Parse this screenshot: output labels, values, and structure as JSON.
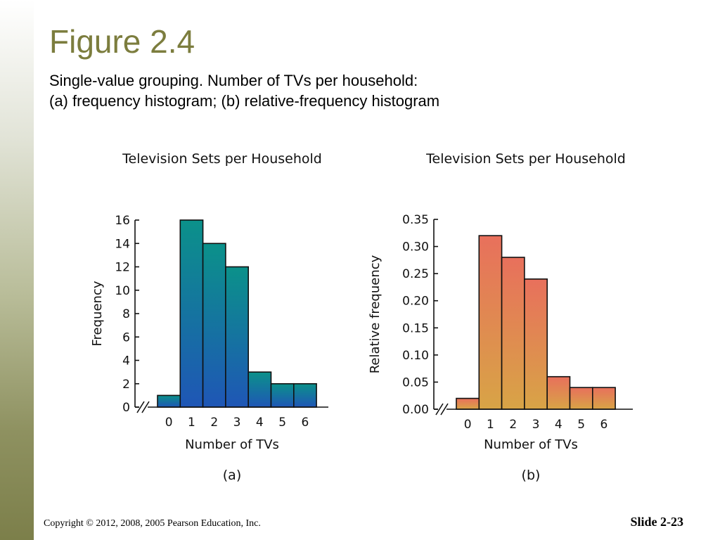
{
  "slide": {
    "title": "Figure 2.4",
    "subtitle_line1": "Single-value grouping. Number of TVs per household:",
    "subtitle_line2": "(a) frequency histogram; (b) relative-frequency histogram",
    "copyright": "Copyright © 2012, 2008, 2005 Pearson Education, Inc.",
    "slide_number": "Slide 2-23"
  },
  "chart_data": [
    {
      "type": "bar",
      "panel_label": "(a)",
      "title": "Television Sets per Household",
      "xlabel": "Number of TVs",
      "ylabel": "Frequency",
      "categories": [
        "0",
        "1",
        "2",
        "3",
        "4",
        "5",
        "6"
      ],
      "values": [
        1,
        16,
        14,
        12,
        3,
        2,
        2
      ],
      "ylim": [
        0,
        16
      ],
      "yticks": [
        "0",
        "2",
        "4",
        "6",
        "8",
        "10",
        "12",
        "14",
        "16"
      ],
      "ytick_values": [
        0,
        2,
        4,
        6,
        8,
        10,
        12,
        14,
        16
      ],
      "axis_break": true,
      "grid": false,
      "gradient": [
        "#0b918a",
        "#1f56b6"
      ]
    },
    {
      "type": "bar",
      "panel_label": "(b)",
      "title": "Television Sets per Household",
      "xlabel": "Number of TVs",
      "ylabel": "Relative frequency",
      "categories": [
        "0",
        "1",
        "2",
        "3",
        "4",
        "5",
        "6"
      ],
      "values": [
        0.02,
        0.32,
        0.28,
        0.24,
        0.06,
        0.04,
        0.04
      ],
      "ylim": [
        0,
        0.35
      ],
      "yticks": [
        "0.00",
        "0.05",
        "0.10",
        "0.15",
        "0.20",
        "0.25",
        "0.30",
        "0.35"
      ],
      "ytick_values": [
        0,
        0.05,
        0.1,
        0.15,
        0.2,
        0.25,
        0.3,
        0.35
      ],
      "axis_break": true,
      "grid": false,
      "gradient": [
        "#e8705c",
        "#d8a446"
      ]
    }
  ]
}
